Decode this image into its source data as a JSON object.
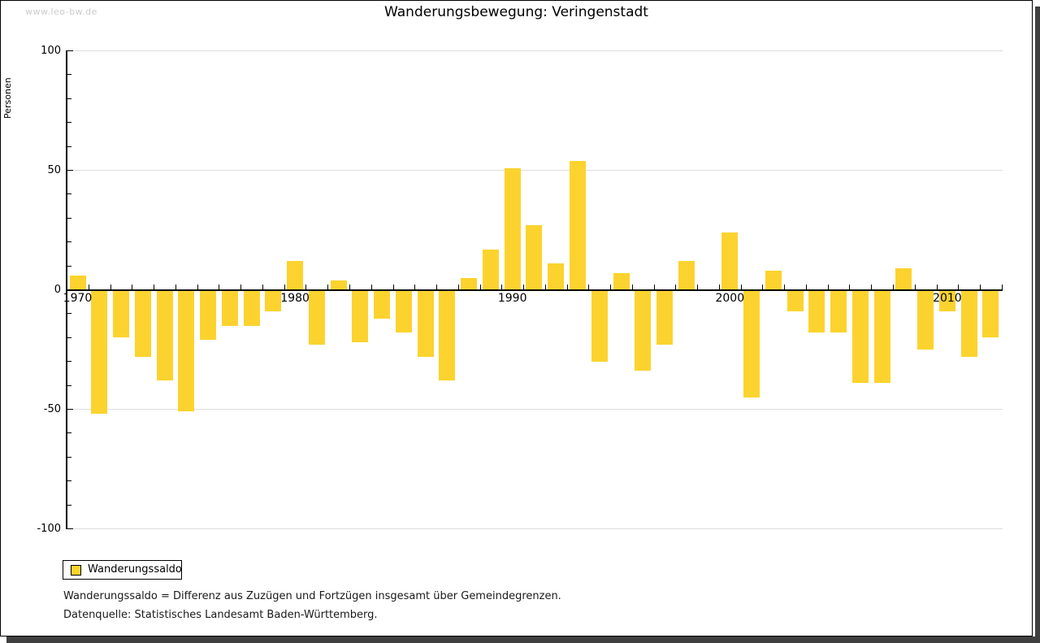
{
  "watermark": "www.leo-bw.de",
  "title": "Wanderungsbewegung: Veringenstadt",
  "legend": {
    "label": "Wanderungssaldo"
  },
  "footnotes": {
    "definition": "Wanderungssaldo = Differenz aus Zuzügen und Fortzügen insgesamt über Gemeindegrenzen.",
    "source": "Datenquelle: Statistisches Landesamt Baden-Württemberg."
  },
  "colors": {
    "bar": "#FCD32E",
    "grid": "#DDDDDD",
    "axis": "#000000",
    "watermark": "#CCCCCC",
    "shadow": "#3F3F3F"
  },
  "chart_data": {
    "type": "bar",
    "title": "Wanderungsbewegung: Veringenstadt",
    "xlabel": "",
    "ylabel": "Personen",
    "ylim": [
      -100,
      100
    ],
    "grid": "horizontal-major",
    "legend_position": "bottom-left-below-plot",
    "y_major_ticks": [
      100,
      50,
      0,
      -50,
      -100
    ],
    "y_minor_tick_step": 10,
    "x_axis_labels": [
      "1970",
      "1980",
      "1990",
      "2000",
      "2010"
    ],
    "series": [
      {
        "name": "Wanderungssaldo",
        "years": [
          1970,
          1971,
          1972,
          1973,
          1974,
          1975,
          1976,
          1977,
          1978,
          1979,
          1980,
          1981,
          1982,
          1983,
          1984,
          1985,
          1986,
          1987,
          1988,
          1989,
          1990,
          1991,
          1992,
          1993,
          1994,
          1995,
          1996,
          1997,
          1998,
          1999,
          2000,
          2001,
          2002,
          2003,
          2004,
          2005,
          2006,
          2007,
          2008,
          2009,
          2010,
          2011,
          2012
        ],
        "values": [
          6,
          -52,
          -20,
          -28,
          -38,
          -51,
          -21,
          -15,
          -15,
          -9,
          12,
          -23,
          4,
          -22,
          -12,
          -18,
          -28,
          -38,
          5,
          17,
          51,
          27,
          11,
          54,
          -30,
          7,
          -34,
          -23,
          12,
          0,
          24,
          -45,
          8,
          -9,
          -18,
          -18,
          -39,
          -39,
          9,
          -25,
          -9,
          -28,
          -20
        ]
      }
    ]
  }
}
